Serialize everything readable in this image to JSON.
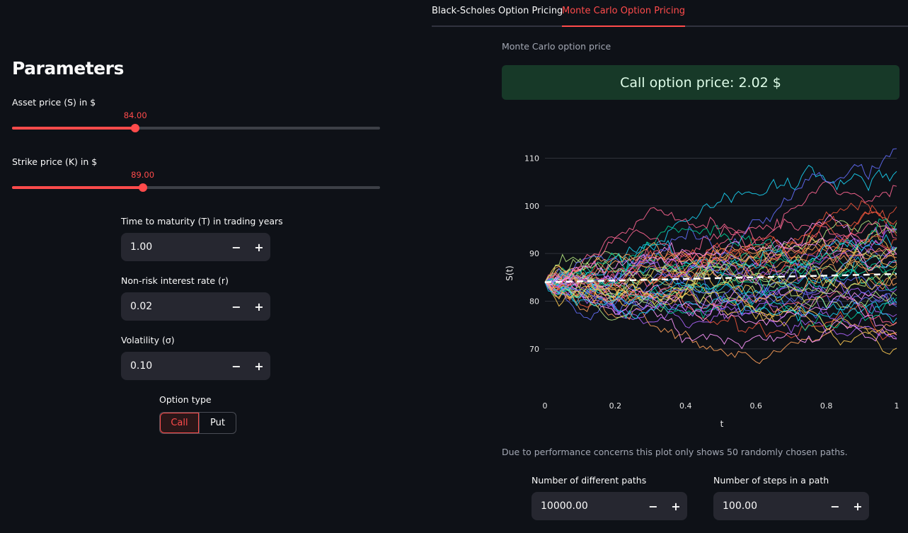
{
  "tabs": [
    {
      "label": "Black-Scholes Option Pricing",
      "active": false
    },
    {
      "label": "Monte Carlo Option Pricing",
      "active": true
    }
  ],
  "sidebar": {
    "title": "Parameters",
    "asset_price": {
      "label": "Asset price (S) in $",
      "value": "84.00",
      "fraction": 0.335
    },
    "strike_price": {
      "label": "Strike price (K) in $",
      "value": "89.00",
      "fraction": 0.355
    },
    "maturity": {
      "label": "Time to maturity (T) in trading years",
      "value": "1.00"
    },
    "rate": {
      "label": "Non-risk interest rate (r)",
      "value": "0.02"
    },
    "volatility": {
      "label": "Volatility (σ)",
      "value": "0.10"
    },
    "option_type": {
      "label": "Option type",
      "options": [
        "Call",
        "Put"
      ],
      "selected": "Call"
    },
    "minus": "−",
    "plus": "+"
  },
  "main": {
    "caption": "Monte Carlo option price",
    "result": "Call option price: 2.02 $",
    "note": "Due to performance concerns this plot only shows 50 randomly chosen paths.",
    "paths_input": {
      "label": "Number of different paths",
      "value": "10000.00"
    },
    "steps_input": {
      "label": "Number of steps in a path",
      "value": "100.00"
    }
  },
  "chart_data": {
    "type": "line",
    "xlabel": "t",
    "ylabel": "S(t)",
    "xlim": [
      0,
      1
    ],
    "ylim": [
      63,
      112
    ],
    "x_ticks": [
      "0",
      "0.2",
      "0.4",
      "0.6",
      "0.8",
      "1"
    ],
    "y_ticks": [
      "70",
      "80",
      "90",
      "100",
      "110"
    ],
    "grid": true,
    "series_count": 50,
    "steps": 100,
    "S0": 84,
    "r": 0.02,
    "sigma": 0.1,
    "mean_line": {
      "style": "dashed",
      "color": "#ffffff",
      "start": 84,
      "end": 85.7
    },
    "path_colors": [
      "#636efa",
      "#ef553b",
      "#00cc96",
      "#ab63fa",
      "#ffa15a",
      "#19d3f3",
      "#ff6692",
      "#b6e880",
      "#ff97ff",
      "#fecb52"
    ]
  }
}
